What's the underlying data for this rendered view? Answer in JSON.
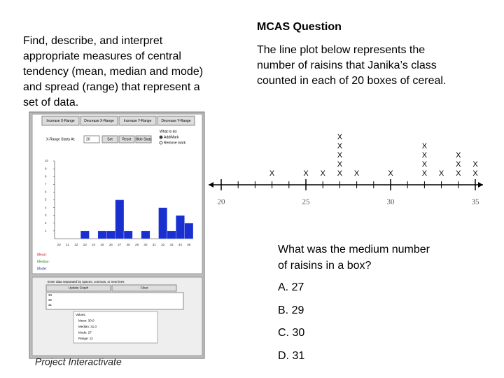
{
  "left": {
    "objective_lines": [
      "Find, describe, and interpret",
      "appropriate measures of central",
      "tendency (mean, median and mode)",
      "and spread (range) that represent a",
      "set of data."
    ],
    "caption": "Project Interactivate",
    "applet": {
      "buttons": [
        "Increase X-Range",
        "Decrease X-Range",
        "Increase Y-Range",
        "Decrease Y-Range"
      ],
      "range_label": "X-Range Starts At:",
      "range_input": "20",
      "controls": [
        "Set",
        "Reset",
        "Hide Stats"
      ],
      "mode_title": "What to do:",
      "mode_options": [
        "Add/Mark",
        "Remove mark"
      ],
      "legend": [
        {
          "name": "Mean:",
          "color": "#cc2222"
        },
        {
          "name": "Median:",
          "color": "#2a8a2a"
        },
        {
          "name": "Mode:",
          "color": "#2233aa"
        }
      ],
      "histogram": {
        "type": "bar",
        "categories": [
          20,
          21,
          22,
          23,
          24,
          25,
          26,
          27,
          28,
          29,
          30,
          31,
          32,
          33,
          34,
          35
        ],
        "values": [
          0,
          0,
          0,
          1,
          0,
          1,
          1,
          5,
          1,
          0,
          1,
          0,
          4,
          1,
          3,
          2
        ],
        "color": "#1a2fd0",
        "ylim": [
          0,
          10
        ],
        "yticks": [
          1,
          2,
          3,
          4,
          5,
          6,
          7,
          8,
          9,
          10
        ]
      },
      "entry_prompt": "Enter data separated by spaces, commas, or new lines",
      "entry_buttons": [
        "Update Graph",
        "Clear"
      ],
      "entries": [
        "33",
        "32",
        "31"
      ],
      "stats": [
        "Values:",
        "Mean: 30.0",
        "Median: 31.0",
        "Mode: 27",
        "Range: 12"
      ]
    }
  },
  "right": {
    "heading": "MCAS Question",
    "prompt_lines": [
      "The line plot below represents the",
      "number of raisins that Janika’s class",
      "counted in each of 20 boxes of cereal."
    ],
    "line_plot": {
      "type": "dot",
      "marker": "X",
      "x": [
        23,
        25,
        26,
        27,
        28,
        30,
        32,
        33,
        34,
        35
      ],
      "values": [
        1,
        1,
        1,
        5,
        1,
        1,
        4,
        1,
        3,
        2
      ],
      "xlim": [
        20,
        35
      ],
      "xticks": [
        20,
        25,
        30,
        35
      ],
      "minor_step": 1
    },
    "question_lines": [
      "What was the medium number",
      "of raisins in a box?"
    ],
    "choices": [
      "A. 27",
      "B. 29",
      "C. 30",
      "D. 31"
    ]
  }
}
